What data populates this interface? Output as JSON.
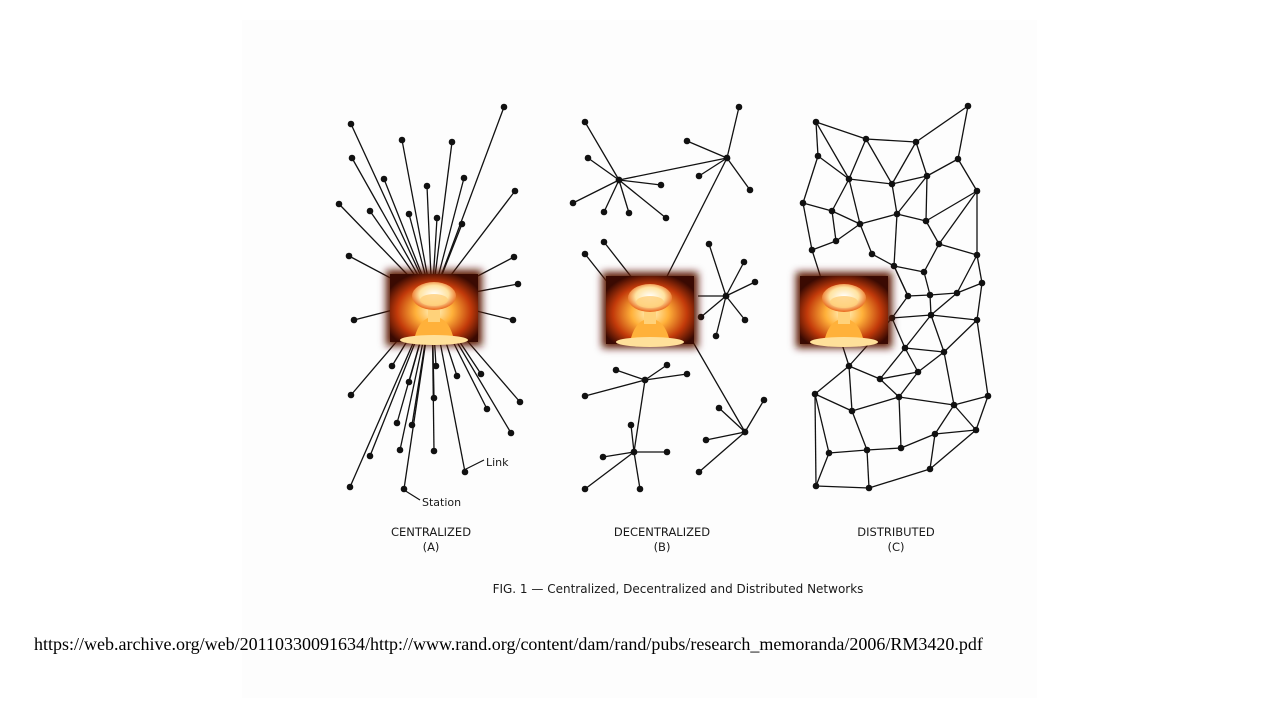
{
  "figure": {
    "caption": "FIG. 1 — Centralized, Decentralized and Distributed Networks",
    "annotations": {
      "link": "Link",
      "station": "Station"
    },
    "networks": [
      {
        "id": "centralized",
        "title": "CENTRALIZED",
        "letter": "(A)"
      },
      {
        "id": "decentralized",
        "title": "DECENTRALIZED",
        "letter": "(B)"
      },
      {
        "id": "distributed",
        "title": "DISTRIBUTED",
        "letter": "(C)"
      }
    ],
    "overlay_icon": "nuclear-explosion-icon"
  },
  "source_url": "https://web.archive.org/web/20110330091634/http://www.rand.org/content/dam/rand/pubs/research_memoranda/2006/RM3420.pdf",
  "colors": {
    "ink": "#111111",
    "panel": "#fdfdfd",
    "fire": "#e8641a",
    "smoke": "#3a0a02"
  }
}
